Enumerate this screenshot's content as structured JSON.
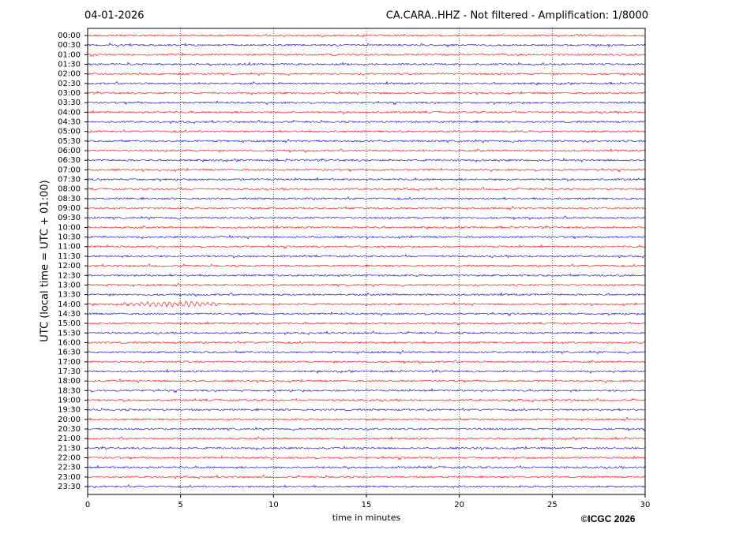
{
  "chart_data": {
    "type": "helicorder",
    "title": "CA.CARA..HHZ - Not filtered - Amplification: 1/8000",
    "subtitle": "04-01-2026",
    "y_label": "UTC (local time = UTC + 01:00)",
    "x_label": "time in minutes",
    "annotation": "©ICGC 2026",
    "categories": [
      "00:00",
      "00:30",
      "01:00",
      "01:30",
      "02:00",
      "02:30",
      "03:00",
      "03:30",
      "04:00",
      "04:30",
      "05:00",
      "05:30",
      "06:00",
      "06:30",
      "07:00",
      "07:30",
      "08:00",
      "08:30",
      "09:00",
      "09:30",
      "10:00",
      "10:30",
      "11:00",
      "11:30",
      "12:00",
      "12:30",
      "13:00",
      "13:30",
      "14:00",
      "14:30",
      "15:00",
      "15:30",
      "16:00",
      "16:30",
      "17:00",
      "17:30",
      "18:00",
      "18:30",
      "19:00",
      "19:30",
      "20:00",
      "20:30",
      "21:00",
      "21:30",
      "22:00",
      "22:30",
      "23:00",
      "23:30"
    ],
    "colors": [
      "#ff0000",
      "#0000cc"
    ],
    "xlim": [
      0,
      30
    ],
    "xticks": [
      0,
      5,
      10,
      15,
      20,
      25,
      30
    ],
    "grid": true
  }
}
